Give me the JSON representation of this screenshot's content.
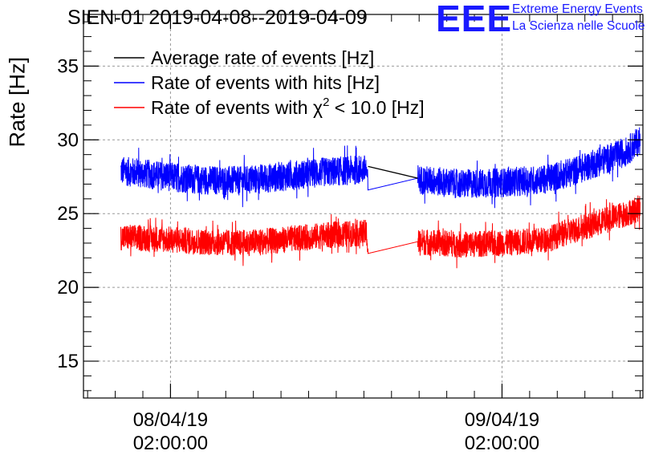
{
  "header": {
    "title": "SIEN-01 2019-04-08--2019-04-09",
    "logo": "EEE",
    "logo_line1": "Extreme Energy Events",
    "logo_line2": "La Scienza nelle Scuole"
  },
  "colors": {
    "average": "#000000",
    "hits": "#0000ff",
    "chi2": "#ff0000",
    "grid": "#999999",
    "logo": "#1a1aff"
  },
  "chart_data": {
    "type": "line",
    "ylabel": "Rate [Hz]",
    "xlabel": "",
    "ylim": [
      12.5,
      38.5
    ],
    "yticks": [
      15,
      20,
      25,
      30,
      35
    ],
    "x_unit": "hours since 2019-04-08 00:00",
    "xlim": [
      -4.3,
      36.2
    ],
    "xticks": [
      {
        "x": 2,
        "date": "08/04/19",
        "time": "02:00:00"
      },
      {
        "x": 26,
        "date": "09/04/19",
        "time": "02:00:00"
      }
    ],
    "grid": true,
    "legend": {
      "placement": "top-left",
      "entries": [
        {
          "key": "average",
          "label": "Average rate of events [Hz]"
        },
        {
          "key": "hits",
          "label": "Rate of events with hits [Hz]"
        },
        {
          "key": "chi2",
          "label": "Rate of events with χ² < 10.0 [Hz]"
        }
      ]
    },
    "data_gap": [
      16.3,
      19.9
    ],
    "series": [
      {
        "name": "Rate of events with hits [Hz]",
        "key": "hits",
        "noise_amplitude": 1.0,
        "x": [
          -1.6,
          1.0,
          4.0,
          7.0,
          10.0,
          13.0,
          16.2,
          16.3,
          19.9,
          20.0,
          23.0,
          26.0,
          29.0,
          31.0,
          33.0,
          35.0,
          36.0
        ],
        "y": [
          27.9,
          27.6,
          27.3,
          27.2,
          27.5,
          27.8,
          28.0,
          26.6,
          27.4,
          27.3,
          27.0,
          27.1,
          27.3,
          27.8,
          28.5,
          29.2,
          30.0
        ]
      },
      {
        "name": "Rate of events with χ² < 10.0 [Hz]",
        "key": "chi2",
        "noise_amplitude": 0.9,
        "x": [
          -1.6,
          1.0,
          4.0,
          7.0,
          10.0,
          13.0,
          16.2,
          16.3,
          19.9,
          20.0,
          23.0,
          26.0,
          29.0,
          31.0,
          33.0,
          35.0,
          36.0
        ],
        "y": [
          23.4,
          23.3,
          23.1,
          23.0,
          23.2,
          23.5,
          23.7,
          22.3,
          23.1,
          23.1,
          22.9,
          23.0,
          23.2,
          23.8,
          24.4,
          25.0,
          25.4
        ]
      },
      {
        "name": "Average rate of events [Hz]",
        "key": "average",
        "x": [
          16.3,
          19.9
        ],
        "y": [
          28.2,
          27.4
        ]
      }
    ]
  }
}
